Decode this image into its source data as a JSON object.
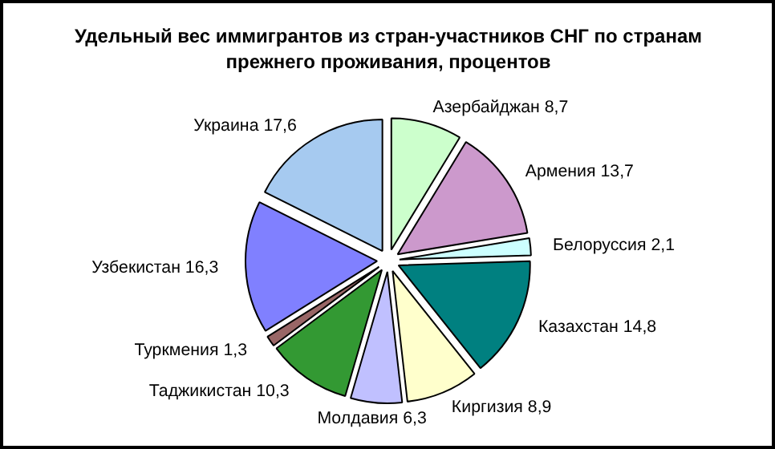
{
  "chart_data": {
    "type": "pie",
    "title": "Удельный вес иммигрантов из стран-участников СНГ по странам прежнего проживания, процентов",
    "categories": [
      "Азербайджан",
      "Армения",
      "Белоруссия",
      "Казахстан",
      "Киргизия",
      "Молдавия",
      "Таджикистан",
      "Туркмения",
      "Узбекистан",
      "Украина"
    ],
    "values": [
      8.7,
      13.7,
      2.1,
      14.8,
      8.9,
      6.3,
      10.3,
      1.3,
      16.3,
      17.6
    ],
    "value_labels": [
      "8,7",
      "13,7",
      "2,1",
      "14,8",
      "8,9",
      "6,3",
      "10,3",
      "1,3",
      "16,3",
      "17,6"
    ],
    "colors": [
      "#ccffcc",
      "#cc99cc",
      "#ccffff",
      "#008080",
      "#ffffcc",
      "#c0c0ff",
      "#339933",
      "#996666",
      "#8080ff",
      "#a6caf0"
    ],
    "legend": false
  }
}
